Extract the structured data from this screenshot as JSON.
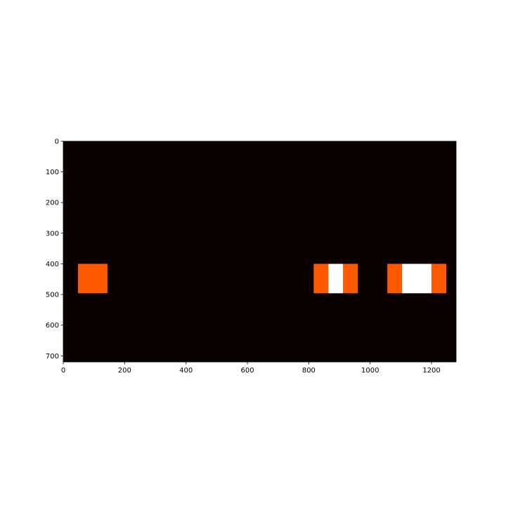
{
  "chart_data": {
    "type": "heatmap",
    "title": "",
    "xlabel": "",
    "ylabel": "",
    "xlim": [
      0,
      1280
    ],
    "ylim": [
      720,
      0
    ],
    "x_ticks": [
      0,
      200,
      400,
      600,
      800,
      1000,
      1200
    ],
    "y_ticks": [
      0,
      100,
      200,
      300,
      400,
      500,
      600,
      700
    ],
    "grid": false,
    "background_value": 0,
    "colormap": "hot",
    "colors": {
      "background": "#0b0000",
      "level_1": "#ff5a00",
      "level_2": "#ffffff"
    },
    "regions": [
      {
        "x0": 48,
        "x1": 144,
        "y0": 400,
        "y1": 496,
        "level": 1
      },
      {
        "x0": 816,
        "x1": 864,
        "y0": 400,
        "y1": 496,
        "level": 1
      },
      {
        "x0": 864,
        "x1": 912,
        "y0": 400,
        "y1": 496,
        "level": 2
      },
      {
        "x0": 912,
        "x1": 960,
        "y0": 400,
        "y1": 496,
        "level": 1
      },
      {
        "x0": 1056,
        "x1": 1104,
        "y0": 400,
        "y1": 496,
        "level": 1
      },
      {
        "x0": 1104,
        "x1": 1200,
        "y0": 400,
        "y1": 496,
        "level": 2
      },
      {
        "x0": 1200,
        "x1": 1248,
        "y0": 400,
        "y1": 496,
        "level": 1
      }
    ]
  }
}
